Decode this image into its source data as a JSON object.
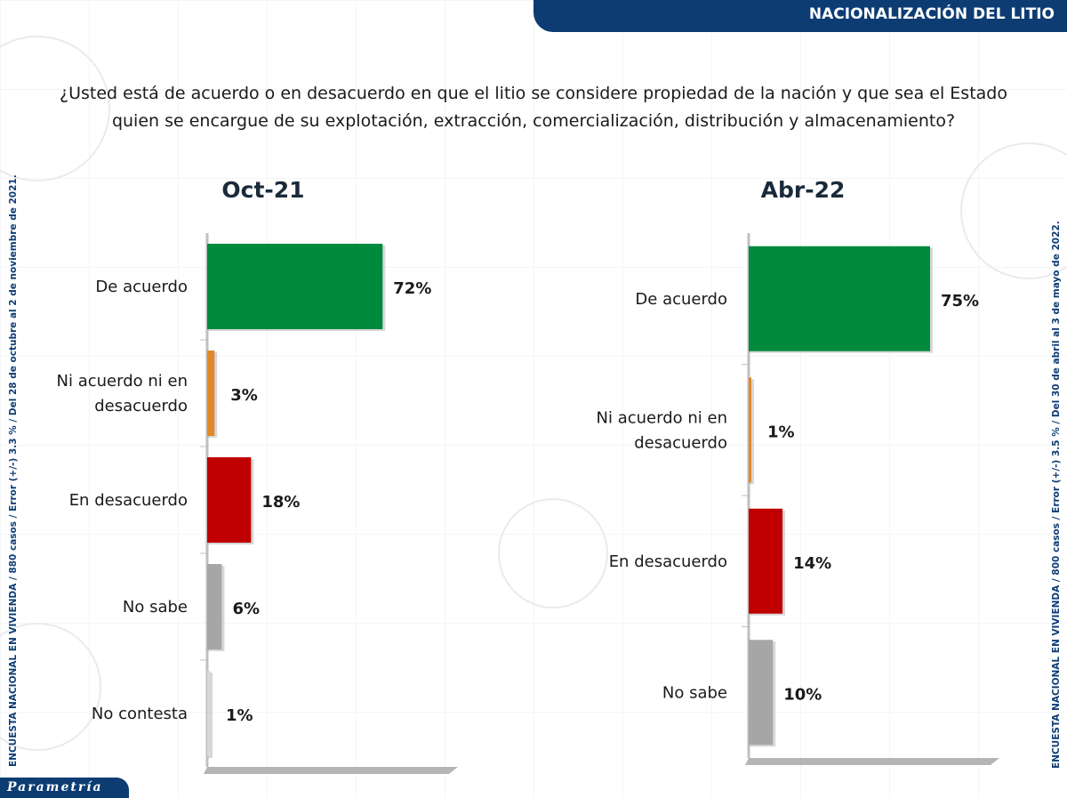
{
  "header": {
    "title": "NACIONALIZACIÓN DEL LITIO"
  },
  "question": "¿Usted está de acuerdo o en desacuerdo en que el litio se considere propiedad de la nación y que sea el Estado quien se encargue de su explotación, extracción, comercialización, distribución y almacenamiento?",
  "side_notes": {
    "left": "ENCUESTA NACIONAL EN VIVIENDA / 880 casos / Error (+/-) 3.3 % / Del 28 de octubre al 2 de noviembre de 2021.",
    "right": "ENCUESTA NACIONAL EN VIVIENDA / 800 casos / Error (+/-) 3.5 % / Del 30 de abril al 3 de mayo de 2022."
  },
  "logo": "Parametría",
  "colors": {
    "De acuerdo": "#008a3e",
    "Ni acuerdo ni en desacuerdo": "#e0892a",
    "En desacuerdo": "#c00000",
    "No sabe": "#a6a6a6",
    "No contesta": "#d9d9d9",
    "banner": "#0d3c73"
  },
  "chart_data": [
    {
      "type": "bar",
      "orientation": "horizontal",
      "title": "Oct-21",
      "categories": [
        "De acuerdo",
        "Ni acuerdo ni en desacuerdo",
        "En desacuerdo",
        "No sabe",
        "No contesta"
      ],
      "category_lines": [
        [
          "De acuerdo"
        ],
        [
          "Ni acuerdo ni en",
          "desacuerdo"
        ],
        [
          "En desacuerdo"
        ],
        [
          "No sabe"
        ],
        [
          "No contesta"
        ]
      ],
      "values": [
        72,
        3,
        18,
        6,
        1
      ],
      "value_labels": [
        "72%",
        "3%",
        "18%",
        "6%",
        "1%"
      ],
      "xlim": [
        0,
        100
      ]
    },
    {
      "type": "bar",
      "orientation": "horizontal",
      "title": "Abr-22",
      "categories": [
        "De acuerdo",
        "Ni acuerdo ni en desacuerdo",
        "En desacuerdo",
        "No sabe"
      ],
      "category_lines": [
        [
          "De acuerdo"
        ],
        [
          "Ni acuerdo ni en",
          "desacuerdo"
        ],
        [
          "En desacuerdo"
        ],
        [
          "No sabe"
        ]
      ],
      "values": [
        75,
        1,
        14,
        10
      ],
      "value_labels": [
        "75%",
        "1%",
        "14%",
        "10%"
      ],
      "xlim": [
        0,
        100
      ]
    }
  ]
}
